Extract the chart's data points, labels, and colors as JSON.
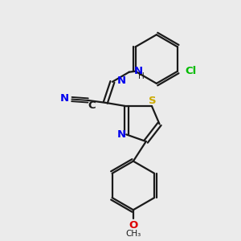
{
  "background_color": "#ebebeb",
  "bond_color": "#1a1a1a",
  "bond_width": 1.6,
  "atom_colors": {
    "N": "#0000ee",
    "S": "#ccaa00",
    "O": "#dd0000",
    "Cl": "#00bb00",
    "C": "#1a1a1a"
  },
  "font_size_atom": 9.5,
  "font_size_sub": 7.5
}
